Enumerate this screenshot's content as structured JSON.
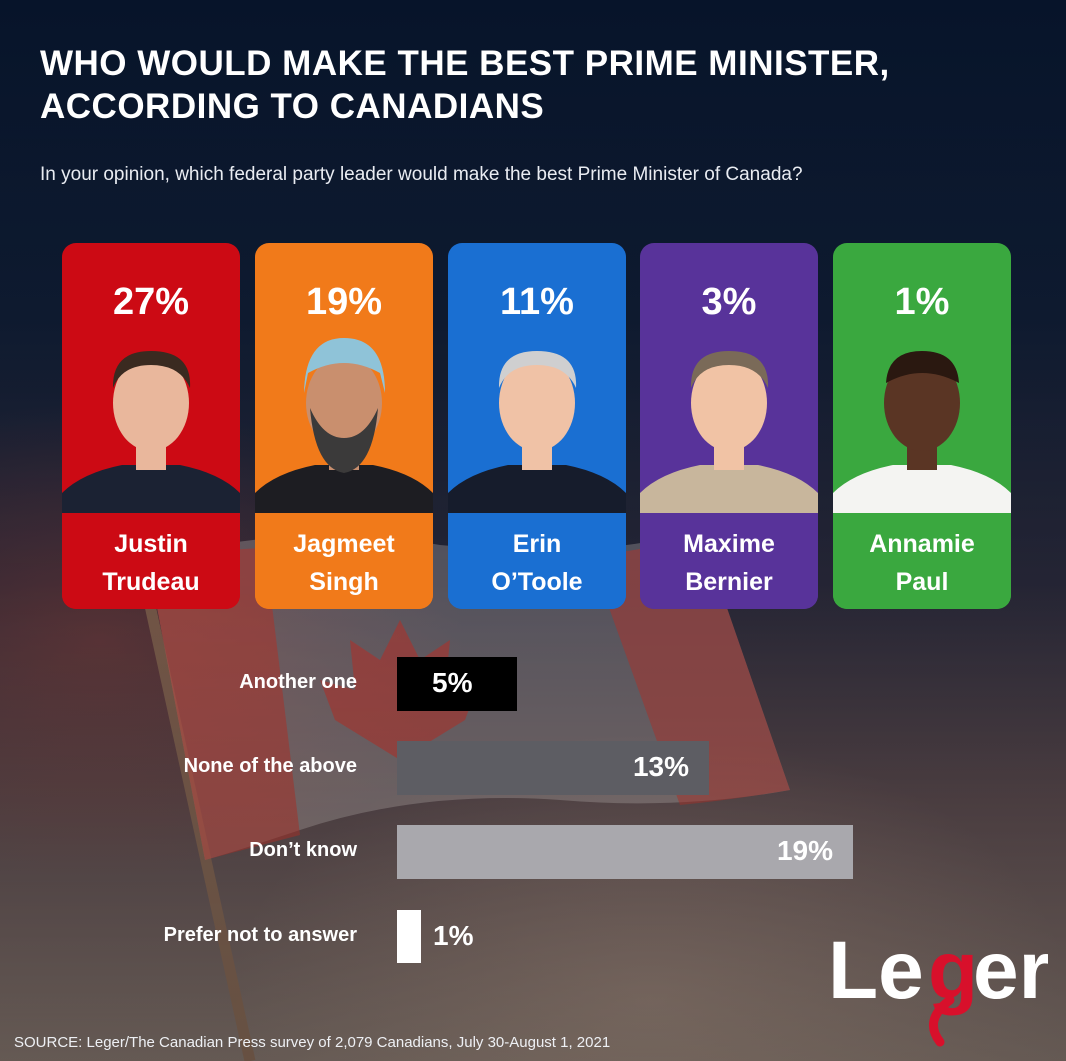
{
  "title_lines": [
    "WHO WOULD MAKE THE BEST PRIME MINISTER,",
    "ACCORDING TO CANADIANS"
  ],
  "subtitle": "In your opinion, which federal party leader would make the best Prime Minister of Canada?",
  "chart_data": {
    "type": "bar",
    "unit": "%",
    "leaders": [
      {
        "name_lines": [
          "Justin",
          "Trudeau"
        ],
        "value": 27,
        "label": "27%",
        "color": "#cc0a14"
      },
      {
        "name_lines": [
          "Jagmeet",
          "Singh"
        ],
        "value": 19,
        "label": "19%",
        "color": "#f17a1a"
      },
      {
        "name_lines": [
          "Erin",
          "O’Toole"
        ],
        "value": 11,
        "label": "11%",
        "color": "#1a6fd2"
      },
      {
        "name_lines": [
          "Maxime",
          "Bernier"
        ],
        "value": 3,
        "label": "3%",
        "color": "#58339a"
      },
      {
        "name_lines": [
          "Annamie",
          "Paul"
        ],
        "value": 1,
        "label": "1%",
        "color": "#3aa83f"
      }
    ],
    "other_responses": [
      {
        "category": "Another one",
        "value": 5,
        "label": "5%",
        "color": "#000000"
      },
      {
        "category": "None of the above",
        "value": 13,
        "label": "13%",
        "color": "#5d5d63"
      },
      {
        "category": "Don’t know",
        "value": 19,
        "label": "19%",
        "color": "#a9a8ad"
      },
      {
        "category": "Prefer not to answer",
        "value": 1,
        "label": "1%",
        "color": "#ffffff"
      }
    ]
  },
  "logo": {
    "text": "Leger",
    "colors": {
      "text": "#ffffff",
      "accent": "#d8102b"
    }
  },
  "source": "SOURCE: Leger/The Canadian Press survey of 2,079 Canadians, July 30-August 1, 2021"
}
